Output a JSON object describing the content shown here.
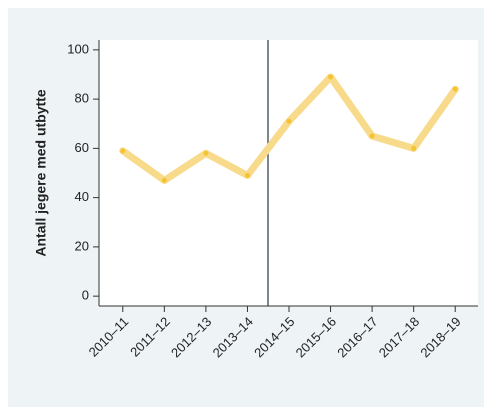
{
  "chart_data": {
    "type": "line",
    "y_label": "Antall jegere med utbytte",
    "categories": [
      "2010–11",
      "2011–12",
      "2012–13",
      "2013–14",
      "2014–15",
      "2015–16",
      "2016–17",
      "2017–18",
      "2018–19"
    ],
    "values": [
      59,
      47,
      58,
      49,
      71,
      89,
      65,
      60,
      84
    ],
    "color": "#f8da8b",
    "marker_color": "#f4c430",
    "ylim": [
      -4,
      104
    ],
    "yticks": [
      0,
      20,
      40,
      60,
      80,
      100
    ],
    "grid": false
  }
}
